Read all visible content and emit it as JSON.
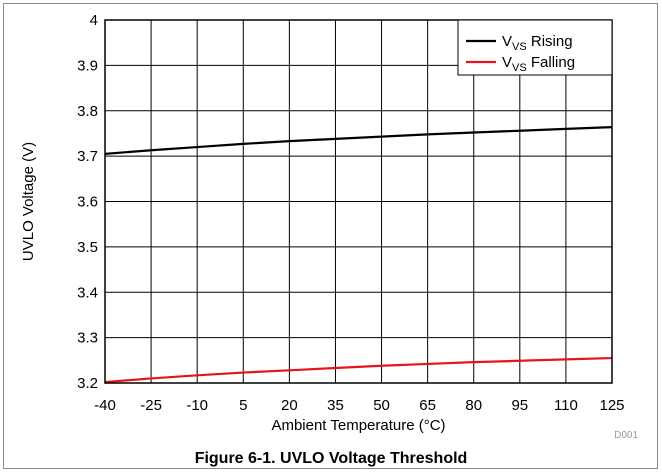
{
  "chart_data": {
    "type": "line",
    "xlabel": "Ambient Temperature (°C)",
    "ylabel": "UVLO Voltage (V)",
    "xlim": [
      -40,
      125
    ],
    "ylim": [
      3.2,
      4.0
    ],
    "xticks": [
      -40,
      -25,
      -10,
      5,
      20,
      35,
      50,
      65,
      80,
      95,
      110,
      125
    ],
    "yticks": [
      "3.2",
      "3.3",
      "3.4",
      "3.5",
      "3.6",
      "3.7",
      "3.8",
      "3.9",
      "4"
    ],
    "grid": true,
    "legend_position": "top-right",
    "series": [
      {
        "legend_main": "V",
        "legend_sub": "VS",
        "legend_rest": " Rising",
        "color": "#000000",
        "x": [
          -40,
          -25,
          -10,
          5,
          20,
          35,
          50,
          65,
          80,
          95,
          110,
          125
        ],
        "y": [
          3.705,
          3.713,
          3.72,
          3.727,
          3.733,
          3.738,
          3.743,
          3.748,
          3.752,
          3.756,
          3.76,
          3.764
        ]
      },
      {
        "legend_main": "V",
        "legend_sub": "VS",
        "legend_rest": " Falling",
        "color": "#e8141c",
        "x": [
          -40,
          -25,
          -10,
          5,
          20,
          35,
          50,
          65,
          80,
          95,
          110,
          125
        ],
        "y": [
          3.202,
          3.21,
          3.217,
          3.223,
          3.228,
          3.233,
          3.238,
          3.242,
          3.246,
          3.249,
          3.252,
          3.255
        ]
      }
    ]
  },
  "figure_code": "D001",
  "caption": "Figure 6-1. UVLO Voltage Threshold"
}
